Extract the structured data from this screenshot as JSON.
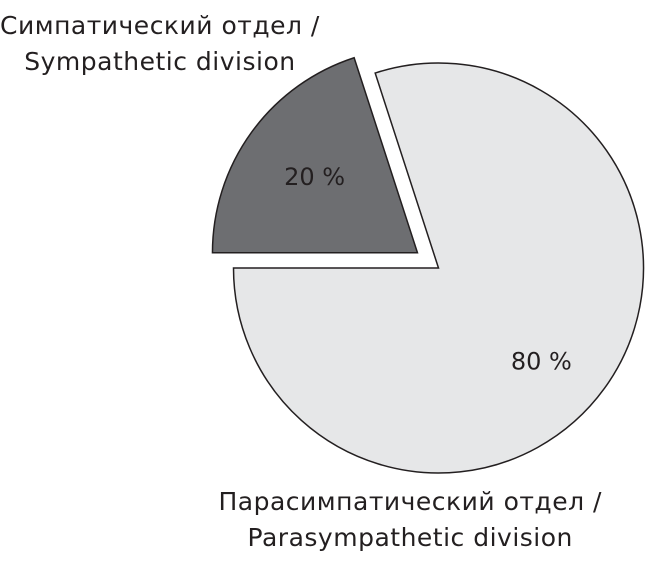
{
  "chart_data": {
    "type": "pie",
    "categories": [
      "Симпатический отдел /\nSympathetic division",
      "Парасимпатический отдел /\nParasympathetic division"
    ],
    "values": [
      20,
      80
    ],
    "value_labels": [
      "20 %",
      "80 %"
    ],
    "colors": [
      "#6d6e71",
      "#e6e7e8"
    ]
  }
}
